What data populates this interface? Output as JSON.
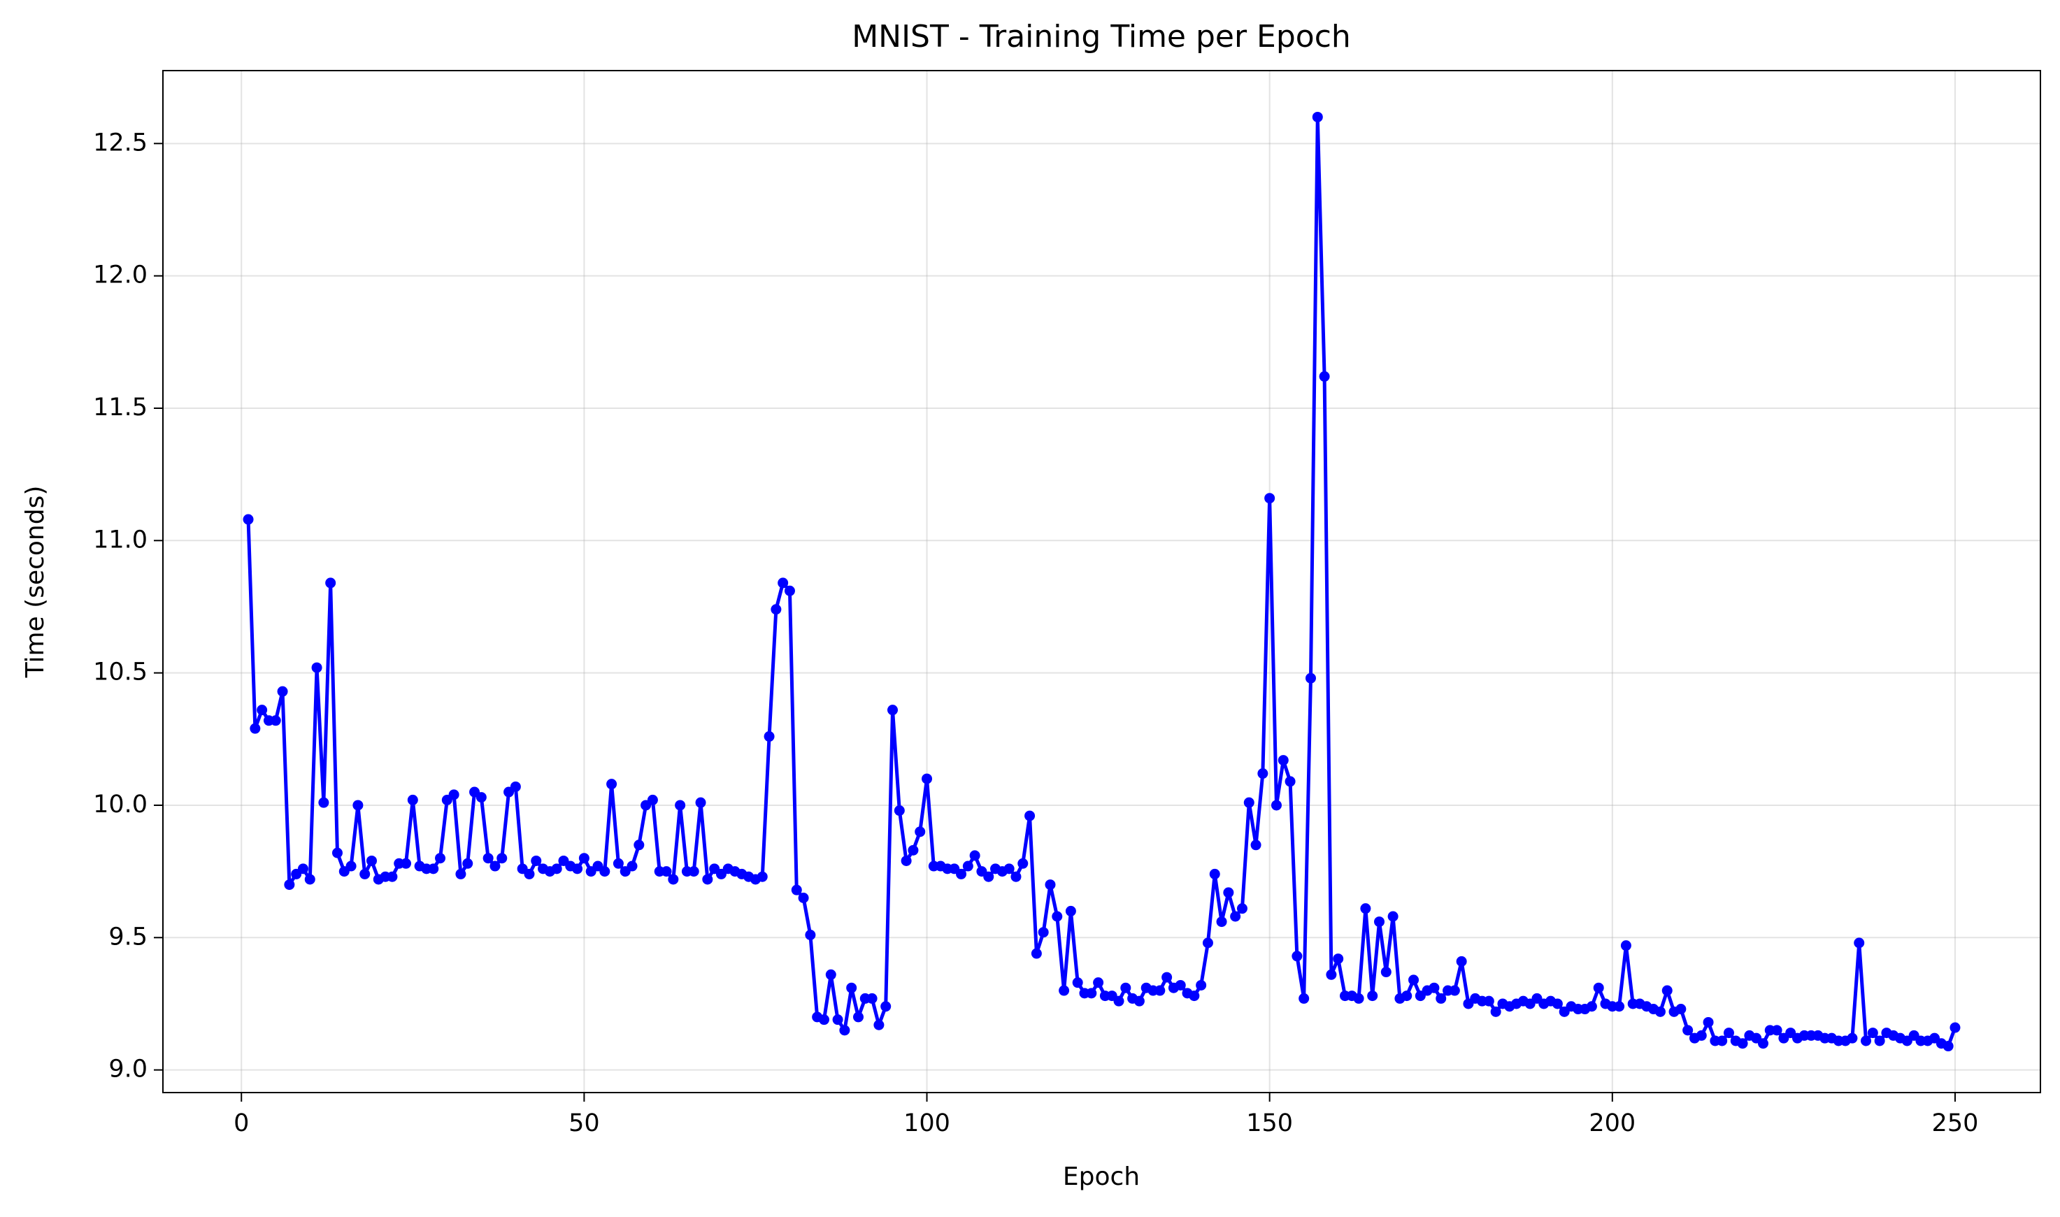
{
  "chart_data": {
    "type": "line",
    "title": "MNIST - Training Time per Epoch",
    "x_label": "Epoch",
    "y_label": "Time (seconds)",
    "x": [
      1,
      2,
      3,
      4,
      5,
      6,
      7,
      8,
      9,
      10,
      11,
      12,
      13,
      14,
      15,
      16,
      17,
      18,
      19,
      20,
      21,
      22,
      23,
      24,
      25,
      26,
      27,
      28,
      29,
      30,
      31,
      32,
      33,
      34,
      35,
      36,
      37,
      38,
      39,
      40,
      41,
      42,
      43,
      44,
      45,
      46,
      47,
      48,
      49,
      50,
      51,
      52,
      53,
      54,
      55,
      56,
      57,
      58,
      59,
      60,
      61,
      62,
      63,
      64,
      65,
      66,
      67,
      68,
      69,
      70,
      71,
      72,
      73,
      74,
      75,
      76,
      77,
      78,
      79,
      80,
      81,
      82,
      83,
      84,
      85,
      86,
      87,
      88,
      89,
      90,
      91,
      92,
      93,
      94,
      95,
      96,
      97,
      98,
      99,
      100,
      101,
      102,
      103,
      104,
      105,
      106,
      107,
      108,
      109,
      110,
      111,
      112,
      113,
      114,
      115,
      116,
      117,
      118,
      119,
      120,
      121,
      122,
      123,
      124,
      125,
      126,
      127,
      128,
      129,
      130,
      131,
      132,
      133,
      134,
      135,
      136,
      137,
      138,
      139,
      140,
      141,
      142,
      143,
      144,
      145,
      146,
      147,
      148,
      149,
      150,
      151,
      152,
      153,
      154,
      155,
      156,
      157,
      158,
      159,
      160,
      161,
      162,
      163,
      164,
      165,
      166,
      167,
      168,
      169,
      170,
      171,
      172,
      173,
      174,
      175,
      176,
      177,
      178,
      179,
      180,
      181,
      182,
      183,
      184,
      185,
      186,
      187,
      188,
      189,
      190,
      191,
      192,
      193,
      194,
      195,
      196,
      197,
      198,
      199,
      200,
      201,
      202,
      203,
      204,
      205,
      206,
      207,
      208,
      209,
      210,
      211,
      212,
      213,
      214,
      215,
      216,
      217,
      218,
      219,
      220,
      221,
      222,
      223,
      224,
      225,
      226,
      227,
      228,
      229,
      230,
      231,
      232,
      233,
      234,
      235,
      236,
      237,
      238,
      239,
      240,
      241,
      242,
      243,
      244,
      245,
      246,
      247,
      248,
      249,
      250
    ],
    "series": [
      {
        "color": "#0000ff",
        "values": [
          11.08,
          10.29,
          10.36,
          10.32,
          10.32,
          10.43,
          9.7,
          9.74,
          9.76,
          9.72,
          10.52,
          10.01,
          10.84,
          9.82,
          9.75,
          9.77,
          10.0,
          9.74,
          9.79,
          9.72,
          9.73,
          9.73,
          9.78,
          9.78,
          10.02,
          9.77,
          9.76,
          9.76,
          9.8,
          10.02,
          10.04,
          9.74,
          9.78,
          10.05,
          10.03,
          9.8,
          9.77,
          9.8,
          10.05,
          10.07,
          9.76,
          9.74,
          9.79,
          9.76,
          9.75,
          9.76,
          9.79,
          9.77,
          9.76,
          9.8,
          9.75,
          9.77,
          9.75,
          10.08,
          9.78,
          9.75,
          9.77,
          9.85,
          10.0,
          10.02,
          9.75,
          9.75,
          9.72,
          10.0,
          9.75,
          9.75,
          10.01,
          9.72,
          9.76,
          9.74,
          9.76,
          9.75,
          9.74,
          9.73,
          9.72,
          9.73,
          10.26,
          10.74,
          10.84,
          10.81,
          9.68,
          9.65,
          9.51,
          9.2,
          9.19,
          9.36,
          9.19,
          9.15,
          9.31,
          9.2,
          9.27,
          9.27,
          9.17,
          9.24,
          10.36,
          9.98,
          9.79,
          9.83,
          9.9,
          10.1,
          9.77,
          9.77,
          9.76,
          9.76,
          9.74,
          9.77,
          9.81,
          9.75,
          9.73,
          9.76,
          9.75,
          9.76,
          9.73,
          9.78,
          9.96,
          9.44,
          9.52,
          9.7,
          9.58,
          9.3,
          9.6,
          9.33,
          9.29,
          9.29,
          9.33,
          9.28,
          9.28,
          9.26,
          9.31,
          9.27,
          9.26,
          9.31,
          9.3,
          9.3,
          9.35,
          9.31,
          9.32,
          9.29,
          9.28,
          9.32,
          9.48,
          9.74,
          9.56,
          9.67,
          9.58,
          9.61,
          10.01,
          9.85,
          10.12,
          11.16,
          10.0,
          10.17,
          10.09,
          9.43,
          9.27,
          10.48,
          12.6,
          11.62,
          9.36,
          9.42,
          9.28,
          9.28,
          9.27,
          9.61,
          9.28,
          9.56,
          9.37,
          9.58,
          9.27,
          9.28,
          9.34,
          9.28,
          9.3,
          9.31,
          9.27,
          9.3,
          9.3,
          9.41,
          9.25,
          9.27,
          9.26,
          9.26,
          9.22,
          9.25,
          9.24,
          9.25,
          9.26,
          9.25,
          9.27,
          9.25,
          9.26,
          9.25,
          9.22,
          9.24,
          9.23,
          9.23,
          9.24,
          9.31,
          9.25,
          9.24,
          9.24,
          9.47,
          9.25,
          9.25,
          9.24,
          9.23,
          9.22,
          9.3,
          9.22,
          9.23,
          9.15,
          9.12,
          9.13,
          9.18,
          9.11,
          9.11,
          9.14,
          9.11,
          9.1,
          9.13,
          9.12,
          9.1,
          9.15,
          9.15,
          9.12,
          9.14,
          9.12,
          9.13,
          9.13,
          9.13,
          9.12,
          9.12,
          9.11,
          9.11,
          9.12,
          9.48,
          9.11,
          9.14,
          9.11,
          9.14,
          9.13,
          9.12,
          9.11,
          9.13,
          9.11,
          9.11,
          9.12,
          9.1,
          9.09,
          9.16
        ]
      }
    ],
    "xlim": [
      -11.45,
      262.45
    ],
    "xticks": [
      0,
      50,
      100,
      150,
      200,
      250
    ],
    "ylim": [
      8.9145,
      12.7755
    ],
    "yticks": [
      {
        "value": 9,
        "label": "9.0"
      },
      9.5,
      {
        "value": 10,
        "label": "10.0"
      },
      10.5,
      {
        "value": 11,
        "label": "11.0"
      },
      11.5,
      {
        "value": 12,
        "label": "12.0"
      },
      12.5
    ],
    "grid": true
  }
}
